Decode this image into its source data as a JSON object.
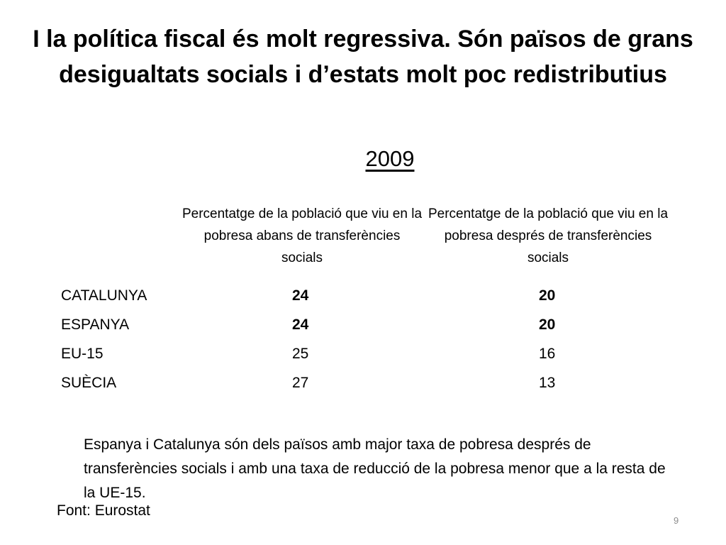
{
  "title": "I la política fiscal és molt regressiva. Són països de grans desigualtats socials i d’estats molt poc redistributius",
  "year": "2009",
  "table": {
    "headers": {
      "before": "Percentatge de la població que viu en la pobresa abans de transferències socials",
      "after": "Percentatge de la població que viu en la pobresa després de transferències socials"
    },
    "rows": [
      {
        "country": "CATALUNYA",
        "before": "24",
        "after": "20",
        "highlight": true
      },
      {
        "country": "ESPANYA",
        "before": "24",
        "after": "20",
        "highlight": true
      },
      {
        "country": "EU-15",
        "before": "25",
        "after": "16",
        "highlight": false
      },
      {
        "country": "SUÈCIA",
        "before": "27",
        "after": "13",
        "highlight": false
      }
    ]
  },
  "note": "Espanya i Catalunya són dels països amb major taxa de pobresa després de transferències socials i amb una taxa de reducció de la pobresa menor que a la resta de la UE-15.",
  "source": "Font: Eurostat",
  "page_number": "9"
}
